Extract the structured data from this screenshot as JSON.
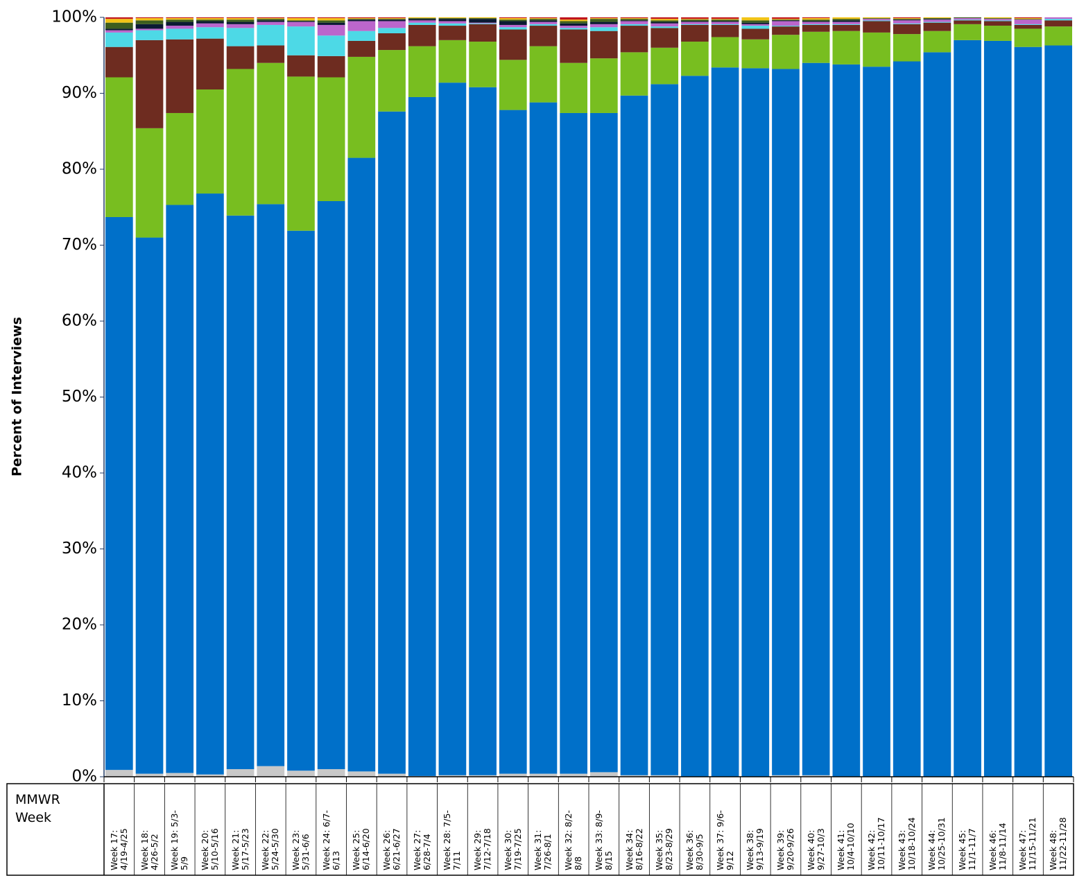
{
  "chart_data": {
    "type": "stacked_bar",
    "y_label": "Percent of Interviews",
    "x_label": "MMWR Week",
    "categories": [
      "Week 17: 4/19-4/25",
      "Week 18: 4/26-5/2",
      "Week 19: 5/3-5/9",
      "Week 20: 5/10-5/16",
      "Week 21: 5/17-5/23",
      "Week 22: 5/24-5/30",
      "Week 23: 5/31-6/6",
      "Week 24: 6/7-6/13",
      "Week 25: 6/14-6/20",
      "Week 26: 6/21-6/27",
      "Week 27: 6/28-7/4",
      "Week 28: 7/5-7/11",
      "Week 29: 7/12-7/18",
      "Week 30: 7/19-7/25",
      "Week 31: 7/26-8/1",
      "Week 32: 8/2-8/8",
      "Week 33: 8/9-8/15",
      "Week 34: 8/16-8/22",
      "Week 35: 8/23-8/29",
      "Week 36: 8/30-9/5",
      "Week 37: 9/6-9/12",
      "Week 38: 9/13-9/19",
      "Week 39: 9/20-9/26",
      "Week 40: 9/27-10/3",
      "Week 41: 10/4-10/10",
      "Week 42: 10/11-10/17",
      "Week 43: 10/18-10/24",
      "Week 44: 10/25-10/31",
      "Week 45: 11/1-11/7",
      "Week 46: 11/8-11/14",
      "Week 47: 11/15-11/21",
      "Week 48: 11/22-11/28"
    ],
    "series": [
      {
        "color": "#c8c8c8",
        "values": [
          0.9,
          0.4,
          0.5,
          0.3,
          1.0,
          1.4,
          0.8,
          1.0,
          0.7,
          0.4,
          0.1,
          0.2,
          0.2,
          0.4,
          0.4,
          0.4,
          0.6,
          0.2,
          0.2,
          0,
          0,
          0,
          0.2,
          0.2,
          0,
          0,
          0,
          0,
          0,
          0,
          0,
          0
        ]
      },
      {
        "color": "#0070c9",
        "values": [
          72.8,
          70.6,
          74.8,
          76.5,
          72.9,
          74.0,
          71.1,
          74.8,
          80.8,
          87.2,
          89.4,
          91.2,
          90.6,
          87.4,
          88.4,
          87.0,
          86.8,
          89.5,
          91.0,
          92.3,
          93.4,
          93.3,
          93.0,
          93.8,
          93.8,
          93.5,
          94.2,
          95.4,
          97.0,
          96.9,
          96.1,
          96.3
        ]
      },
      {
        "color": "#78be20",
        "values": [
          18.4,
          14.4,
          12.1,
          13.7,
          19.3,
          18.6,
          20.3,
          16.3,
          13.3,
          8.1,
          6.7,
          5.6,
          6.0,
          6.6,
          7.4,
          6.6,
          7.2,
          5.7,
          4.8,
          4.5,
          4.0,
          3.8,
          4.5,
          4.1,
          4.4,
          4.5,
          3.6,
          2.8,
          2.1,
          2.0,
          2.4,
          2.5
        ]
      },
      {
        "color": "#6e2c20",
        "values": [
          4.0,
          11.6,
          9.7,
          6.7,
          3.0,
          2.3,
          2.8,
          2.8,
          2.1,
          2.2,
          2.8,
          1.9,
          2.3,
          4.0,
          2.7,
          4.4,
          3.6,
          3.5,
          2.6,
          2.2,
          1.6,
          1.4,
          1.1,
          0.9,
          0.8,
          1.5,
          1.3,
          1.1,
          0.5,
          0.6,
          0.5,
          0.8
        ]
      },
      {
        "color": "#4dd9e6",
        "values": [
          1.9,
          1.3,
          1.4,
          1.5,
          2.4,
          2.7,
          3.8,
          2.7,
          1.3,
          0.7,
          0.3,
          0.3,
          0.1,
          0.3,
          0.2,
          0.2,
          0.5,
          0.2,
          0.2,
          0.1,
          0.1,
          0.4,
          0.1,
          0.1,
          0.1,
          0.1,
          0.1,
          0.1,
          0.1,
          0.1,
          0.1,
          0.2
        ]
      },
      {
        "color": "#bb66cc",
        "values": [
          0.3,
          0.2,
          0.4,
          0.5,
          0.5,
          0.4,
          0.6,
          1.4,
          1.3,
          0.9,
          0.3,
          0.3,
          0.1,
          0.3,
          0.3,
          0.3,
          0.4,
          0.4,
          0.4,
          0.3,
          0.3,
          0.2,
          0.6,
          0.3,
          0.3,
          0.2,
          0.4,
          0.3,
          0.2,
          0.2,
          0.6,
          0.2
        ]
      },
      {
        "color": "#0b1a33",
        "values": [
          0.2,
          0.6,
          0.5,
          0.3,
          0.3,
          0.2,
          0.1,
          0.3,
          0.2,
          0.2,
          0.2,
          0.3,
          0.5,
          0.5,
          0.2,
          0.3,
          0.3,
          0.1,
          0.2,
          0.1,
          0.1,
          0.2,
          0.1,
          0.1,
          0.2,
          0,
          0.1,
          0.1,
          0,
          0,
          0,
          0
        ]
      },
      {
        "color": "#3d5e1e",
        "values": [
          0.8,
          0.5,
          0.3,
          0.2,
          0.3,
          0.2,
          0.1,
          0.3,
          0.1,
          0.1,
          0.1,
          0.1,
          0.1,
          0.2,
          0.2,
          0.3,
          0.4,
          0.2,
          0.2,
          0.2,
          0.2,
          0.3,
          0.1,
          0.2,
          0.2,
          0.1,
          0.1,
          0.1,
          0.1,
          0.1,
          0.1,
          0
        ]
      },
      {
        "color": "#f2c417",
        "values": [
          0.5,
          0.3,
          0.2,
          0.2,
          0.2,
          0.1,
          0.3,
          0.3,
          0.1,
          0.1,
          0.1,
          0.1,
          0.1,
          0.2,
          0.1,
          0.2,
          0.1,
          0.1,
          0.2,
          0.1,
          0.1,
          0.4,
          0.1,
          0.2,
          0.2,
          0.1,
          0.1,
          0.1,
          0,
          0.1,
          0.1,
          0
        ]
      },
      {
        "color": "#c0141c",
        "values": [
          0.2,
          0.1,
          0.1,
          0.1,
          0.1,
          0.1,
          0.1,
          0.1,
          0.1,
          0.1,
          0,
          0,
          0,
          0.1,
          0.1,
          0.3,
          0.1,
          0.1,
          0.2,
          0.2,
          0.2,
          0,
          0.2,
          0.1,
          0,
          0,
          0.1,
          0,
          0,
          0,
          0.1,
          0
        ]
      }
    ],
    "ylim": [
      0,
      100
    ],
    "yticks": [
      {
        "value": 0,
        "label": "0%"
      },
      {
        "value": 10,
        "label": "10%"
      },
      {
        "value": 20,
        "label": "20%"
      },
      {
        "value": 30,
        "label": "30%"
      },
      {
        "value": 40,
        "label": "40%"
      },
      {
        "value": 50,
        "label": "50%"
      },
      {
        "value": 60,
        "label": "60%"
      },
      {
        "value": 70,
        "label": "70%"
      },
      {
        "value": 80,
        "label": "80%"
      },
      {
        "value": 90,
        "label": "90%"
      },
      {
        "value": 100,
        "label": "100%"
      }
    ]
  }
}
